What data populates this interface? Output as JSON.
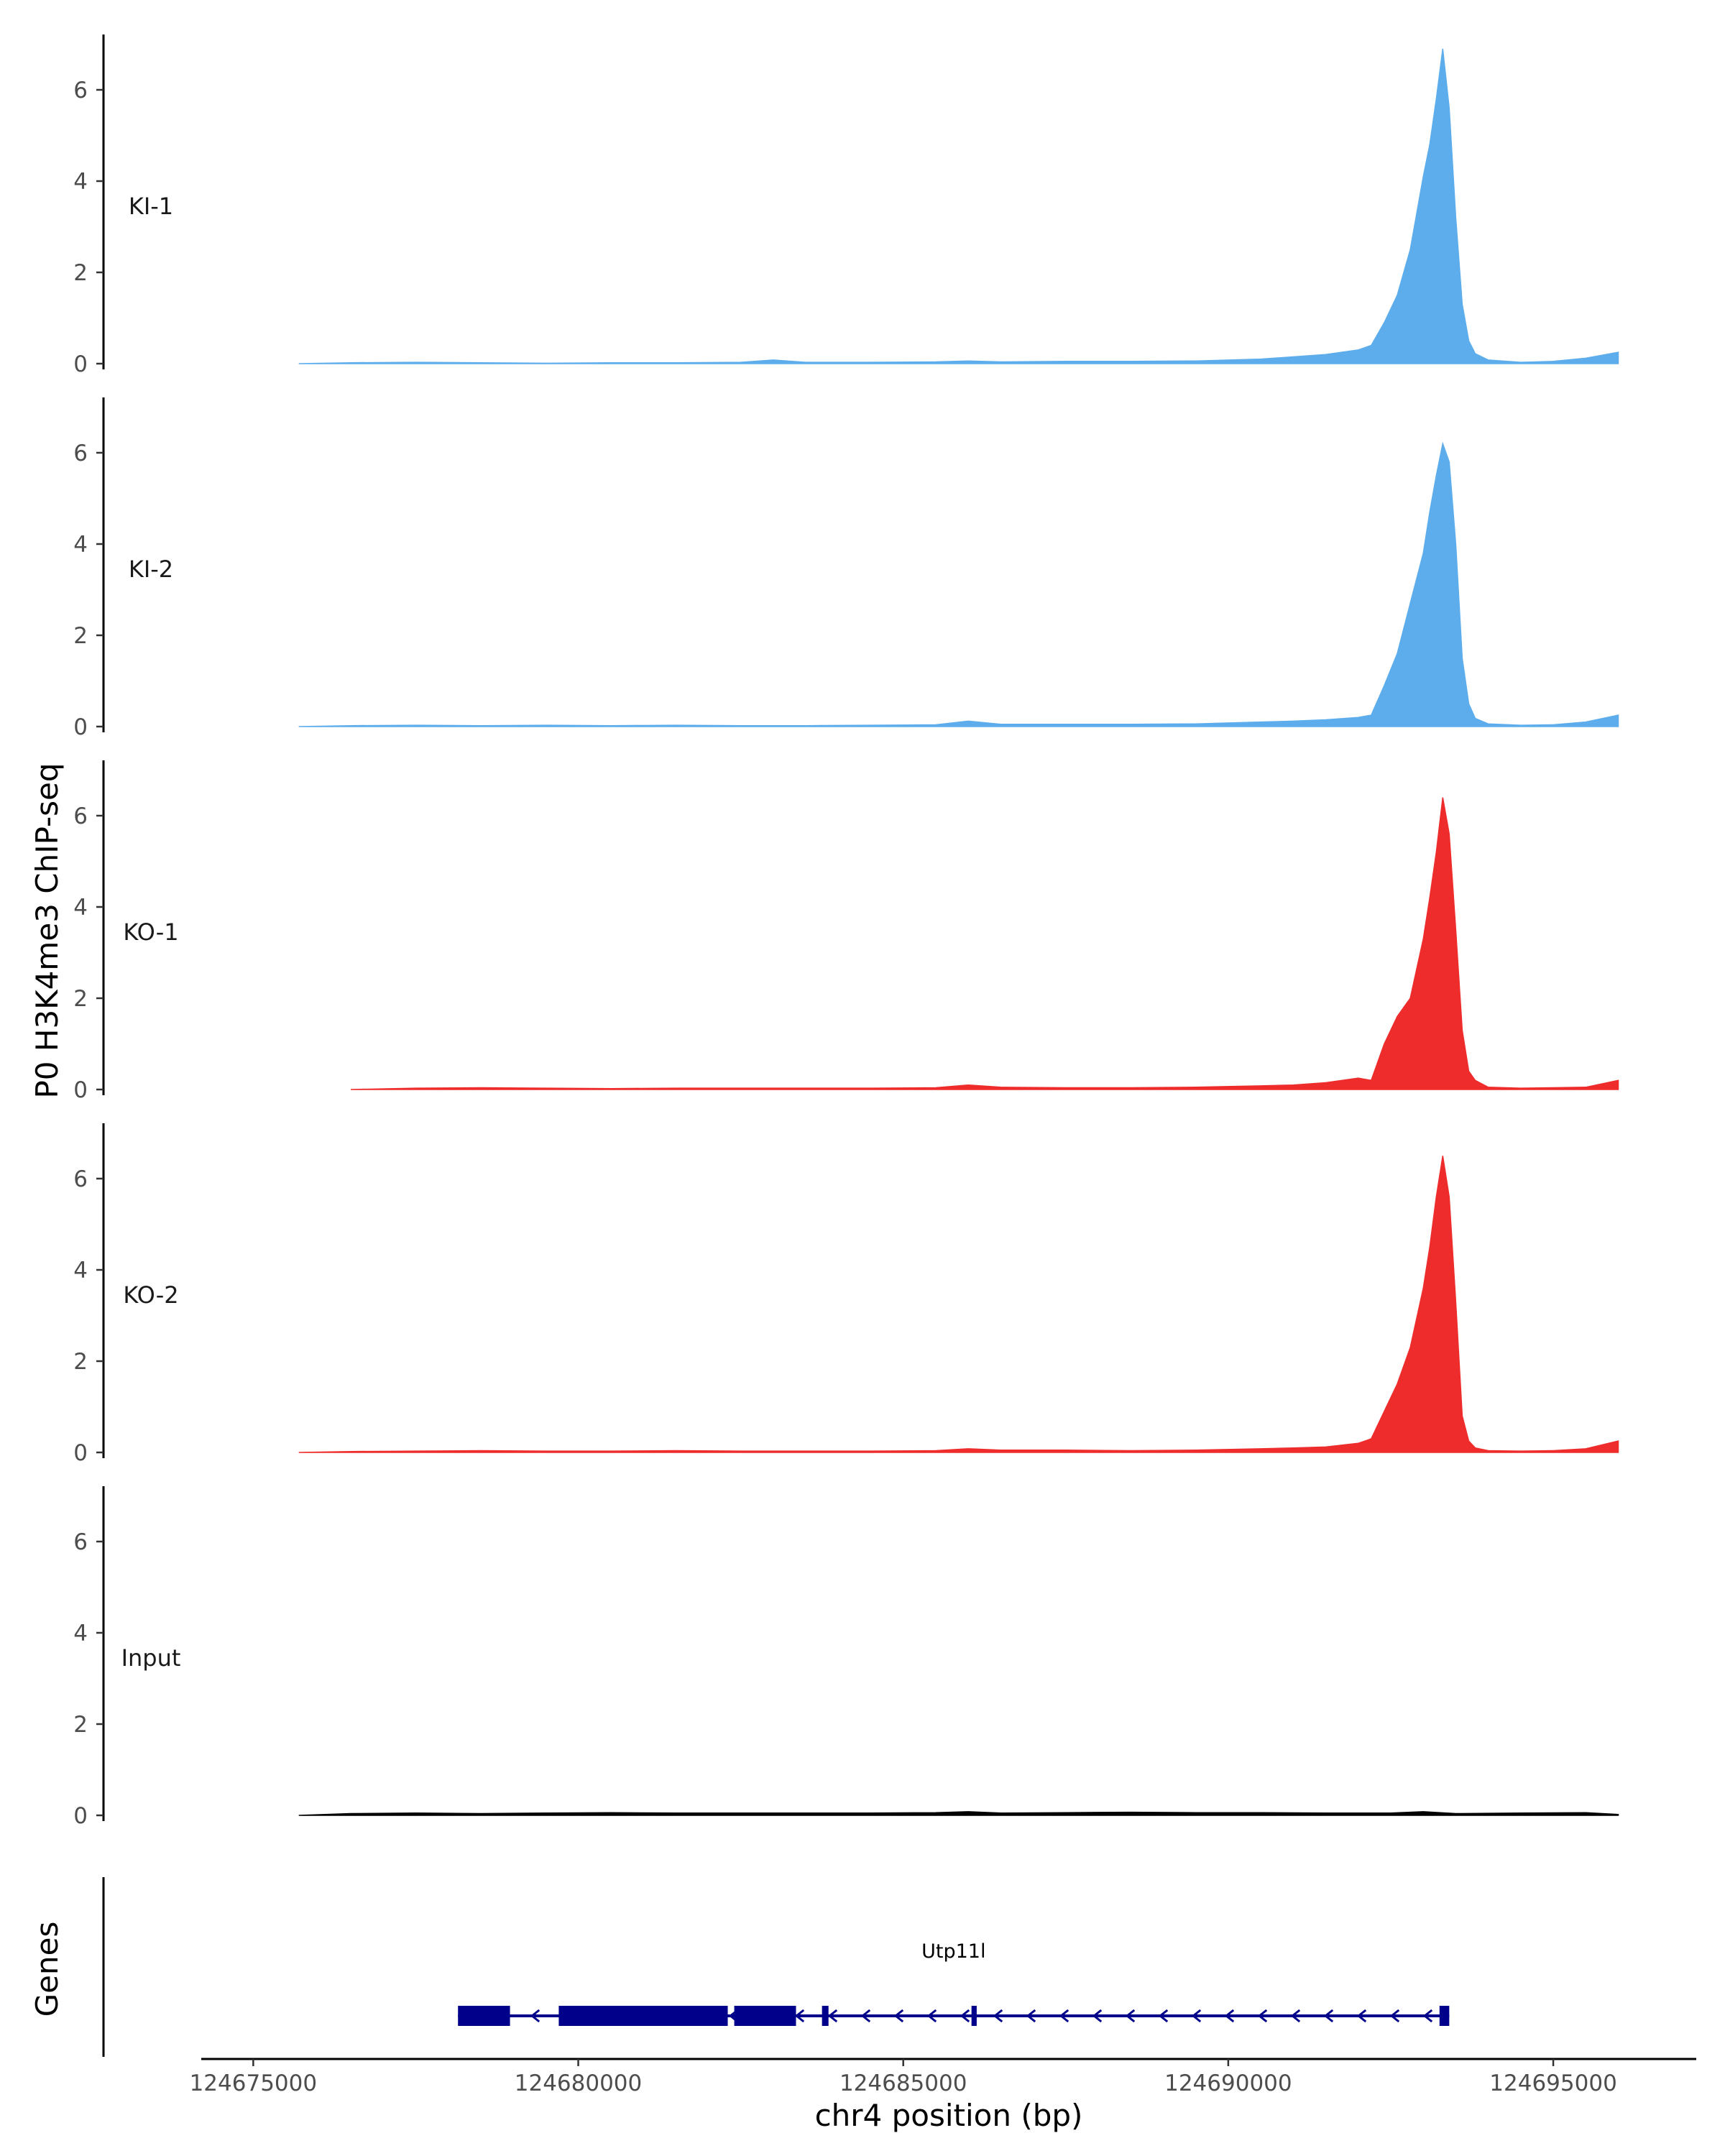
{
  "chart_data": {
    "type": "area",
    "ylabel": "P0 H3K4me3 ChIP-seq",
    "xlabel": "chr4 position (bp)",
    "genes_label": "Genes",
    "xlim": [
      124674200,
      124697200
    ],
    "ylim": [
      0,
      7.2
    ],
    "y_ticks": [
      {
        "value": 0,
        "label": "0"
      },
      {
        "value": 2,
        "label": "2"
      },
      {
        "value": 4,
        "label": "4"
      },
      {
        "value": 6,
        "label": "6"
      }
    ],
    "x_ticks": [
      {
        "value": 124675000,
        "label": "124675000"
      },
      {
        "value": 124680000,
        "label": "124680000"
      },
      {
        "value": 124685000,
        "label": "124685000"
      },
      {
        "value": 124690000,
        "label": "124690000"
      },
      {
        "value": 124695000,
        "label": "124695000"
      }
    ],
    "tracks": [
      {
        "name": "KI-1",
        "color": "#5DADEC",
        "x": [
          124675700,
          124676500,
          124677500,
          124678500,
          124679500,
          124680500,
          124681500,
          124682500,
          124683000,
          124683500,
          124684500,
          124685500,
          124686000,
          124686500,
          124687500,
          124688500,
          124689500,
          124690500,
          124691000,
          124691500,
          124692000,
          124692200,
          124692400,
          124692600,
          124692800,
          124693000,
          124693100,
          124693200,
          124693300,
          124693400,
          124693500,
          124693600,
          124693700,
          124693800,
          124694000,
          124694500,
          124695000,
          124695500,
          124696000
        ],
        "values": [
          0,
          0.02,
          0.03,
          0.02,
          0.01,
          0.02,
          0.02,
          0.03,
          0.08,
          0.03,
          0.03,
          0.04,
          0.06,
          0.04,
          0.05,
          0.05,
          0.06,
          0.1,
          0.15,
          0.2,
          0.3,
          0.4,
          0.9,
          1.5,
          2.5,
          4.1,
          4.8,
          5.8,
          6.9,
          5.6,
          3.2,
          1.3,
          0.5,
          0.22,
          0.08,
          0.03,
          0.05,
          0.12,
          0.25
        ]
      },
      {
        "name": "KI-2",
        "color": "#5DADEC",
        "x": [
          124675700,
          124676500,
          124677500,
          124678500,
          124679500,
          124680500,
          124681500,
          124682500,
          124683500,
          124684500,
          124685500,
          124686000,
          124686500,
          124687500,
          124688500,
          124689500,
          124690500,
          124691000,
          124691500,
          124692000,
          124692200,
          124692400,
          124692600,
          124692800,
          124693000,
          124693100,
          124693200,
          124693300,
          124693400,
          124693500,
          124693600,
          124693700,
          124693800,
          124694000,
          124694500,
          124695000,
          124695500,
          124696000
        ],
        "values": [
          0,
          0.02,
          0.03,
          0.02,
          0.03,
          0.02,
          0.03,
          0.02,
          0.02,
          0.03,
          0.04,
          0.12,
          0.05,
          0.05,
          0.05,
          0.06,
          0.1,
          0.12,
          0.15,
          0.2,
          0.25,
          0.9,
          1.6,
          2.7,
          3.8,
          4.7,
          5.5,
          6.2,
          5.8,
          4.0,
          1.5,
          0.5,
          0.18,
          0.06,
          0.03,
          0.04,
          0.1,
          0.25
        ]
      },
      {
        "name": "KO-1",
        "color": "#EE2C2C",
        "x": [
          124676500,
          124677500,
          124678500,
          124679500,
          124680500,
          124681500,
          124682500,
          124683500,
          124684500,
          124685500,
          124686000,
          124686500,
          124687500,
          124688500,
          124689500,
          124690500,
          124691000,
          124691500,
          124692000,
          124692200,
          124692400,
          124692600,
          124692800,
          124693000,
          124693100,
          124693200,
          124693300,
          124693400,
          124693500,
          124693600,
          124693700,
          124693800,
          124694000,
          124694500,
          124695000,
          124695500,
          124696000
        ],
        "values": [
          0,
          0.03,
          0.04,
          0.03,
          0.02,
          0.03,
          0.03,
          0.03,
          0.03,
          0.04,
          0.1,
          0.05,
          0.04,
          0.04,
          0.05,
          0.08,
          0.1,
          0.15,
          0.25,
          0.2,
          1.0,
          1.6,
          2.0,
          3.3,
          4.2,
          5.2,
          6.4,
          5.6,
          3.5,
          1.3,
          0.4,
          0.2,
          0.05,
          0.03,
          0.04,
          0.05,
          0.2
        ]
      },
      {
        "name": "KO-2",
        "color": "#EE2C2C",
        "x": [
          124675700,
          124676500,
          124677500,
          124678500,
          124679500,
          124680500,
          124681500,
          124682500,
          124683500,
          124684500,
          124685500,
          124686000,
          124686500,
          124687500,
          124688500,
          124689500,
          124690500,
          124691000,
          124691500,
          124692000,
          124692200,
          124692400,
          124692600,
          124692800,
          124693000,
          124693100,
          124693200,
          124693300,
          124693400,
          124693500,
          124693600,
          124693700,
          124693800,
          124694000,
          124694500,
          124695000,
          124695500,
          124696000
        ],
        "values": [
          0,
          0.02,
          0.03,
          0.04,
          0.03,
          0.03,
          0.04,
          0.03,
          0.03,
          0.03,
          0.04,
          0.08,
          0.05,
          0.05,
          0.04,
          0.05,
          0.08,
          0.1,
          0.12,
          0.2,
          0.3,
          0.9,
          1.5,
          2.3,
          3.6,
          4.5,
          5.6,
          6.5,
          5.6,
          3.3,
          0.8,
          0.25,
          0.1,
          0.04,
          0.03,
          0.04,
          0.08,
          0.25
        ]
      },
      {
        "name": "Input",
        "color": "#000000",
        "x": [
          124675700,
          124676500,
          124677500,
          124678500,
          124679500,
          124680500,
          124681500,
          124682500,
          124683500,
          124684500,
          124685500,
          124686000,
          124686500,
          124687500,
          124688500,
          124689500,
          124690500,
          124691500,
          124692500,
          124693000,
          124693500,
          124694500,
          124695500,
          124696000
        ],
        "values": [
          0,
          0.04,
          0.05,
          0.04,
          0.05,
          0.06,
          0.05,
          0.05,
          0.05,
          0.05,
          0.06,
          0.08,
          0.05,
          0.06,
          0.07,
          0.06,
          0.06,
          0.05,
          0.05,
          0.08,
          0.04,
          0.05,
          0.06,
          0.02
        ]
      }
    ],
    "genes": [
      {
        "name": "Utp11l",
        "color": "#00008B",
        "start": 124678150,
        "end": 124693400,
        "strand": "-",
        "blocks": [
          {
            "start": 124678150,
            "end": 124678950,
            "type": "exon"
          },
          {
            "start": 124679700,
            "end": 124682300,
            "type": "exon"
          },
          {
            "start": 124682400,
            "end": 124683350,
            "type": "exon"
          },
          {
            "start": 124683750,
            "end": 124683850,
            "type": "exon"
          },
          {
            "start": 124686050,
            "end": 124686130,
            "type": "exon"
          },
          {
            "start": 124693250,
            "end": 124693400,
            "type": "exon"
          }
        ]
      }
    ]
  }
}
